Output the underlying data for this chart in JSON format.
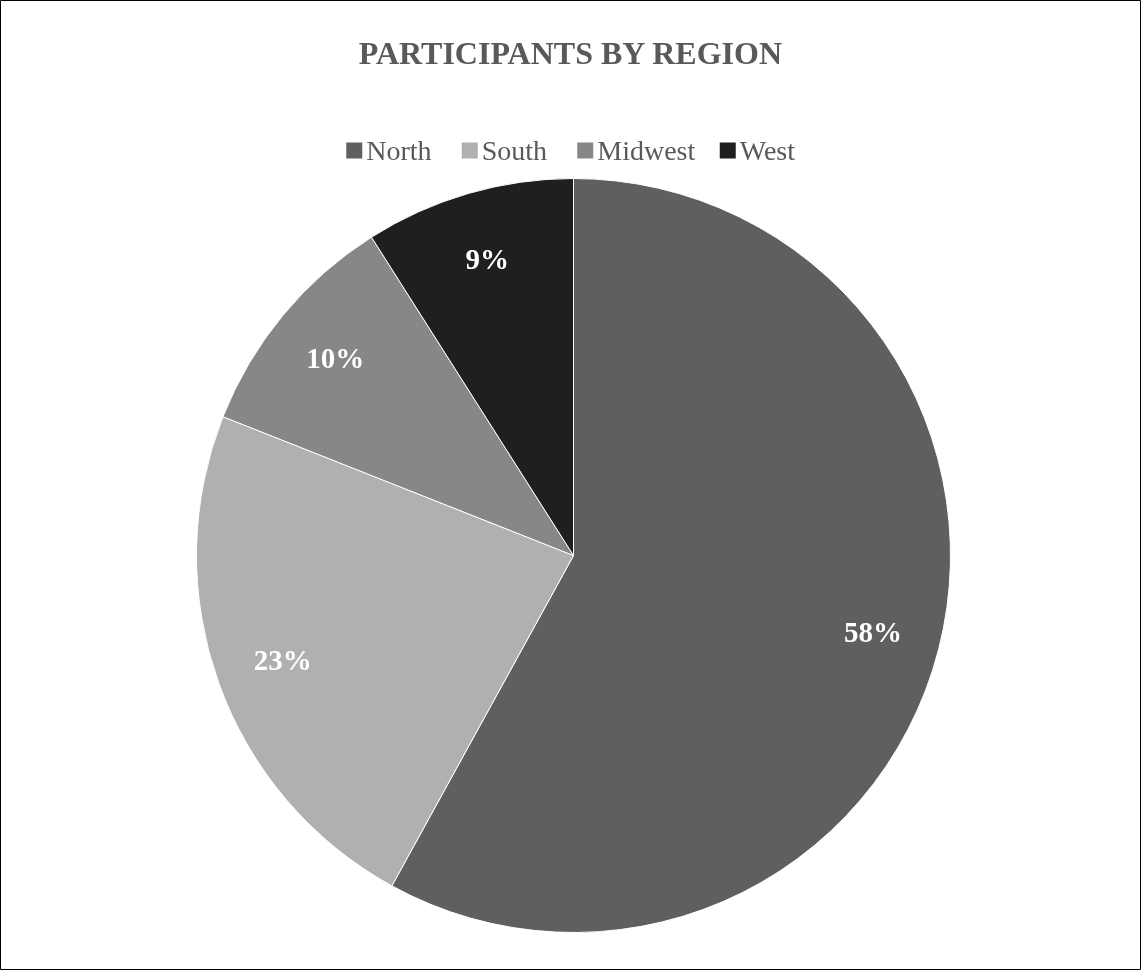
{
  "chart_data": {
    "type": "pie",
    "title": "PARTICIPANTS BY REGION",
    "categories": [
      "North",
      "South",
      "Midwest",
      "West"
    ],
    "values": [
      58,
      23,
      10,
      9
    ],
    "colors": [
      "#5f5f5f",
      "#b0b0b0",
      "#878787",
      "#1f1f1f"
    ],
    "value_labels": [
      "58%",
      "23%",
      "10%",
      "9%"
    ],
    "legend": "top"
  }
}
